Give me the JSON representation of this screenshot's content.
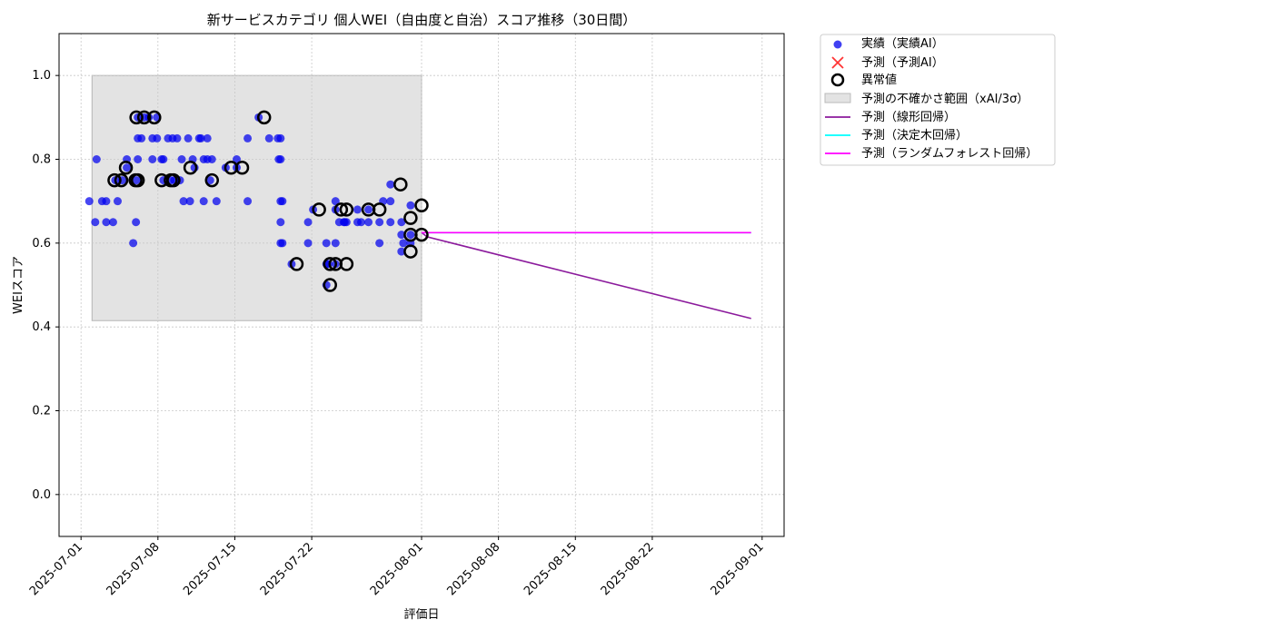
{
  "chart_data": {
    "type": "scatter",
    "title": "新サービスカテゴリ 個人WEI（自由度と自治）スコア推移（30日間）",
    "xlabel": "評価日",
    "ylabel": "WEIスコア",
    "xlim": [
      "2025-06-29",
      "2025-09-03"
    ],
    "ylim": [
      -0.1,
      1.1
    ],
    "grid": true,
    "legend_position": "outside-top-right",
    "x_ticks": [
      "2025-07-01",
      "2025-07-08",
      "2025-07-15",
      "2025-07-22",
      "2025-08-01",
      "2025-08-08",
      "2025-08-15",
      "2025-08-22",
      "2025-09-01"
    ],
    "y_ticks": [
      0.0,
      0.2,
      0.4,
      0.6,
      0.8,
      1.0
    ],
    "uncertainty_band": {
      "x": [
        "2025-07-02",
        "2025-08-01"
      ],
      "y": [
        0.415,
        1.0
      ]
    },
    "series": [
      {
        "name": "実績（実績AI）",
        "kind": "scatter",
        "color": "#0000ee",
        "points": [
          [
            "2025-07-01 18:00",
            0.7
          ],
          [
            "2025-07-02 07:00",
            0.65
          ],
          [
            "2025-07-02 10:00",
            0.8
          ],
          [
            "2025-07-02 22:00",
            0.7
          ],
          [
            "2025-07-03 07:00",
            0.7
          ],
          [
            "2025-07-03 07:00",
            0.65
          ],
          [
            "2025-07-03 22:00",
            0.65
          ],
          [
            "2025-07-04 08:00",
            0.7
          ],
          [
            "2025-07-04 03:00",
            0.75
          ],
          [
            "2025-07-04 18:00",
            0.75
          ],
          [
            "2025-07-05 04:00",
            0.8
          ],
          [
            "2025-07-05 04:00",
            0.78
          ],
          [
            "2025-07-05 18:00",
            0.6
          ],
          [
            "2025-07-06 00:00",
            0.65
          ],
          [
            "2025-07-06 01:00",
            0.75
          ],
          [
            "2025-07-06 04:00",
            0.8
          ],
          [
            "2025-07-06 04:00",
            0.85
          ],
          [
            "2025-07-06 04:00",
            0.9
          ],
          [
            "2025-07-06 12:00",
            0.85
          ],
          [
            "2025-07-06 18:00",
            0.9
          ],
          [
            "2025-07-07 04:00",
            0.9
          ],
          [
            "2025-07-07 12:00",
            0.8
          ],
          [
            "2025-07-07 12:00",
            0.85
          ],
          [
            "2025-07-07 22:00",
            0.85
          ],
          [
            "2025-07-07 22:00",
            0.9
          ],
          [
            "2025-07-08 08:00",
            0.8
          ],
          [
            "2025-07-08 12:00",
            0.75
          ],
          [
            "2025-07-08 12:00",
            0.8
          ],
          [
            "2025-07-08 22:00",
            0.85
          ],
          [
            "2025-07-09 04:00",
            0.75
          ],
          [
            "2025-07-09 08:00",
            0.85
          ],
          [
            "2025-07-09 12:00",
            0.75
          ],
          [
            "2025-07-09 18:00",
            0.85
          ],
          [
            "2025-07-10 00:00",
            0.75
          ],
          [
            "2025-07-10 04:00",
            0.8
          ],
          [
            "2025-07-10 08:00",
            0.7
          ],
          [
            "2025-07-10 18:00",
            0.85
          ],
          [
            "2025-07-10 22:00",
            0.7
          ],
          [
            "2025-07-11 04:00",
            0.8
          ],
          [
            "2025-07-11 08:00",
            0.78
          ],
          [
            "2025-07-11 18:00",
            0.85
          ],
          [
            "2025-07-11 22:00",
            0.85
          ],
          [
            "2025-07-12 04:00",
            0.8
          ],
          [
            "2025-07-12 04:00",
            0.7
          ],
          [
            "2025-07-12 12:00",
            0.85
          ],
          [
            "2025-07-12 12:00",
            0.8
          ],
          [
            "2025-07-12 18:00",
            0.75
          ],
          [
            "2025-07-12 22:00",
            0.8
          ],
          [
            "2025-07-13 08:00",
            0.7
          ],
          [
            "2025-07-14 04:00",
            0.78
          ],
          [
            "2025-07-15 04:00",
            0.8
          ],
          [
            "2025-07-15 04:00",
            0.78
          ],
          [
            "2025-07-16 04:00",
            0.85
          ],
          [
            "2025-07-16 04:00",
            0.7
          ],
          [
            "2025-07-17 04:00",
            0.9
          ],
          [
            "2025-07-18 03:00",
            0.85
          ],
          [
            "2025-07-18 22:00",
            0.85
          ],
          [
            "2025-07-19 00:00",
            0.8
          ],
          [
            "2025-07-19 04:00",
            0.8
          ],
          [
            "2025-07-19 04:00",
            0.85
          ],
          [
            "2025-07-19 04:00",
            0.7
          ],
          [
            "2025-07-19 04:00",
            0.65
          ],
          [
            "2025-07-19 04:00",
            0.6
          ],
          [
            "2025-07-19 08:00",
            0.7
          ],
          [
            "2025-07-19 08:00",
            0.6
          ],
          [
            "2025-07-20 04:00",
            0.55
          ],
          [
            "2025-07-21 16:00",
            0.65
          ],
          [
            "2025-07-21 16:00",
            0.6
          ],
          [
            "2025-07-22 03:00",
            0.68
          ],
          [
            "2025-07-23 08:00",
            0.6
          ],
          [
            "2025-07-23 08:00",
            0.55
          ],
          [
            "2025-07-23 08:00",
            0.5
          ],
          [
            "2025-07-23 12:00",
            0.55
          ],
          [
            "2025-07-24 04:00",
            0.6
          ],
          [
            "2025-07-24 04:00",
            0.7
          ],
          [
            "2025-07-24 04:00",
            0.68
          ],
          [
            "2025-07-24 04:00",
            0.55
          ],
          [
            "2025-07-24 12:00",
            0.65
          ],
          [
            "2025-07-24 22:00",
            0.65
          ],
          [
            "2025-07-25 00:00",
            0.65
          ],
          [
            "2025-07-25 04:00",
            0.65
          ],
          [
            "2025-07-26 04:00",
            0.65
          ],
          [
            "2025-07-26 04:00",
            0.68
          ],
          [
            "2025-07-26 12:00",
            0.65
          ],
          [
            "2025-07-27 04:00",
            0.68
          ],
          [
            "2025-07-27 04:00",
            0.65
          ],
          [
            "2025-07-28 04:00",
            0.65
          ],
          [
            "2025-07-28 04:00",
            0.6
          ],
          [
            "2025-07-28 12:00",
            0.7
          ],
          [
            "2025-07-29 04:00",
            0.7
          ],
          [
            "2025-07-29 04:00",
            0.65
          ],
          [
            "2025-07-29 04:00",
            0.74
          ],
          [
            "2025-07-30 04:00",
            0.65
          ],
          [
            "2025-07-30 04:00",
            0.62
          ],
          [
            "2025-07-30 04:00",
            0.58
          ],
          [
            "2025-07-30 08:00",
            0.6
          ],
          [
            "2025-07-31 00:00",
            0.6
          ],
          [
            "2025-07-31 00:00",
            0.62
          ],
          [
            "2025-07-31 00:00",
            0.69
          ]
        ]
      },
      {
        "name": "予測（予測AI）",
        "kind": "scatter",
        "color": "#ff0000",
        "points": []
      },
      {
        "name": "異常値",
        "kind": "outlier",
        "points": [
          [
            "2025-07-04 01:00",
            0.75
          ],
          [
            "2025-07-04 16:00",
            0.75
          ],
          [
            "2025-07-05 02:00",
            0.78
          ],
          [
            "2025-07-05 23:00",
            0.75
          ],
          [
            "2025-07-06 01:00",
            0.9
          ],
          [
            "2025-07-06 04:00",
            0.75
          ],
          [
            "2025-07-06 18:00",
            0.9
          ],
          [
            "2025-07-07 16:00",
            0.9
          ],
          [
            "2025-07-08 08:00",
            0.75
          ],
          [
            "2025-07-09 04:00",
            0.75
          ],
          [
            "2025-07-09 10:00",
            0.75
          ],
          [
            "2025-07-10 23:00",
            0.78
          ],
          [
            "2025-07-12 22:00",
            0.75
          ],
          [
            "2025-07-14 16:00",
            0.78
          ],
          [
            "2025-07-15 16:00",
            0.78
          ],
          [
            "2025-07-17 16:00",
            0.9
          ],
          [
            "2025-07-20 15:00",
            0.55
          ],
          [
            "2025-07-22 16:00",
            0.68
          ],
          [
            "2025-07-23 16:00",
            0.55
          ],
          [
            "2025-07-23 16:00",
            0.5
          ],
          [
            "2025-07-24 04:00",
            0.55
          ],
          [
            "2025-07-24 16:00",
            0.68
          ],
          [
            "2025-07-25 04:00",
            0.55
          ],
          [
            "2025-07-25 04:00",
            0.68
          ],
          [
            "2025-07-27 04:00",
            0.68
          ],
          [
            "2025-07-28 04:00",
            0.68
          ],
          [
            "2025-07-30 02:00",
            0.74
          ],
          [
            "2025-07-31 00:00",
            0.66
          ],
          [
            "2025-07-31 00:00",
            0.62
          ],
          [
            "2025-07-31 00:00",
            0.58
          ],
          [
            "2025-08-01 00:00",
            0.69
          ],
          [
            "2025-08-01 00:00",
            0.62
          ]
        ]
      },
      {
        "name": "予測の不確かさ範囲（xAI/3σ）",
        "kind": "band",
        "color": "#cccccc"
      },
      {
        "name": "予測（線形回帰）",
        "kind": "line",
        "color": "#8b1a9c",
        "points": [
          [
            "2025-08-01",
            0.625
          ],
          [
            "2025-08-01 12:00",
            0.615
          ],
          [
            "2025-08-31",
            0.42
          ]
        ]
      },
      {
        "name": "予測（決定木回帰）",
        "kind": "line",
        "color": "#00ffff",
        "points": [
          [
            "2025-08-01",
            0.625
          ],
          [
            "2025-08-31",
            0.625
          ]
        ]
      },
      {
        "name": "予測（ランダムフォレスト回帰）",
        "kind": "line",
        "color": "#ff00ff",
        "points": [
          [
            "2025-08-01",
            0.625
          ],
          [
            "2025-08-31",
            0.625
          ]
        ]
      }
    ]
  }
}
